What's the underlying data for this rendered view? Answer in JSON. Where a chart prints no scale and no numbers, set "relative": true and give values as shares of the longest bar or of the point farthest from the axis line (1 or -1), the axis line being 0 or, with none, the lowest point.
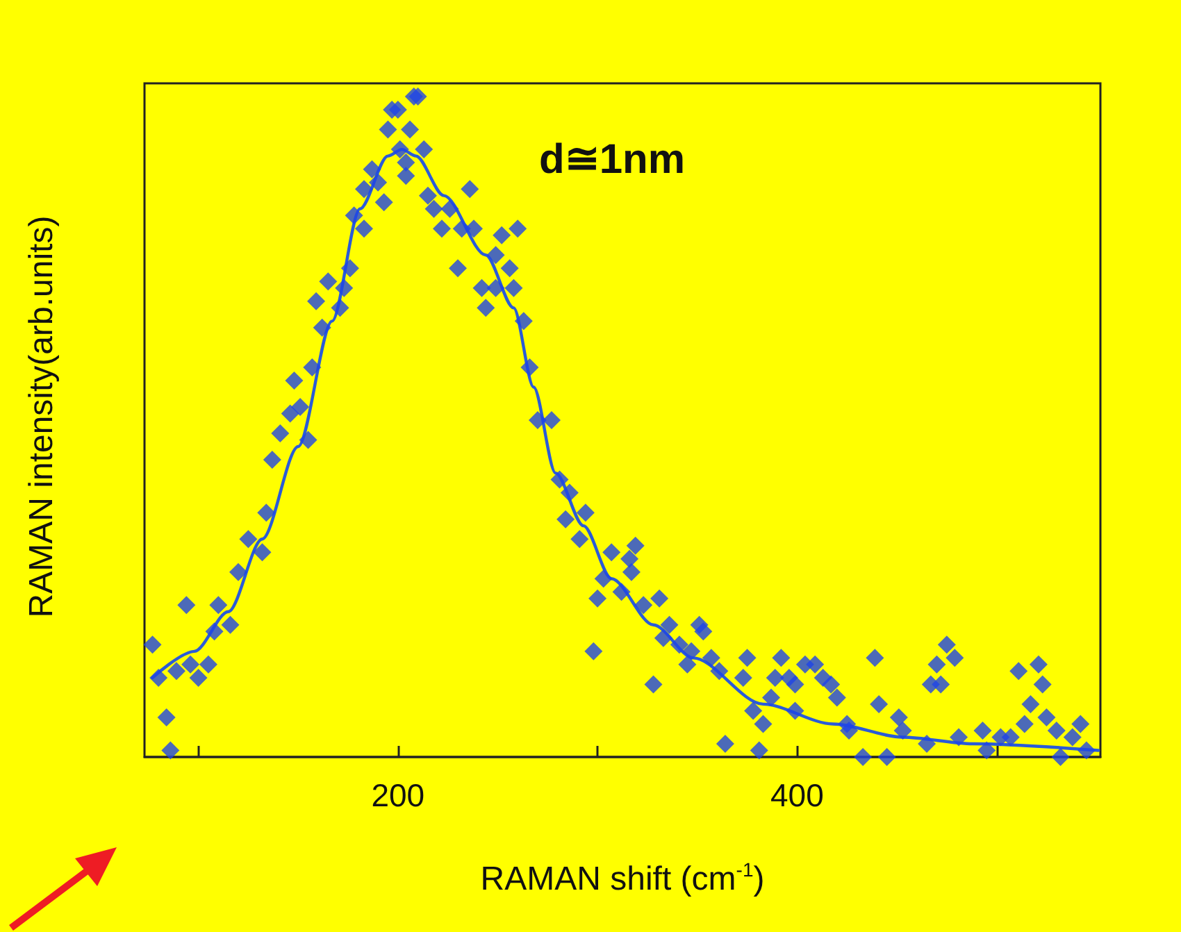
{
  "chart_data": {
    "type": "scatter",
    "xlabel": "RAMAN shift (cm$^{-1}$)",
    "ylabel": "RAMAN intensity(arb.units)",
    "annotations": [
      "d≅1nm"
    ],
    "relative": true,
    "xlim": [
      73,
      552
    ],
    "xticks": [
      {
        "value": 100,
        "label": null
      },
      200,
      {
        "value": 300,
        "label": null
      },
      400,
      {
        "value": 500,
        "label": null
      }
    ],
    "grid": false,
    "series": [
      {
        "marker": "diamond",
        "color": "#1f45e6",
        "x": [
          77,
          80,
          84,
          86,
          89,
          94,
          96,
          100,
          105,
          108,
          110,
          116,
          120,
          125,
          132,
          134,
          137,
          141,
          146,
          151,
          155,
          148,
          157,
          162,
          159,
          165,
          171,
          173,
          176,
          178,
          183,
          183,
          193,
          187,
          190,
          195,
          197,
          201,
          204,
          206,
          208,
          210,
          200,
          213,
          204,
          215,
          236,
          218,
          226,
          222,
          232,
          238,
          252,
          260,
          230,
          249,
          256,
          242,
          249,
          258,
          244,
          263,
          266,
          270,
          277,
          281,
          286,
          284,
          294,
          291,
          307,
          316,
          303,
          312,
          300,
          298,
          319,
          317,
          323,
          331,
          328,
          336,
          333,
          351,
          353,
          341,
          347,
          357,
          345,
          361,
          375,
          373,
          378,
          383,
          364,
          381,
          387,
          392,
          389,
          396,
          399,
          404,
          409,
          413,
          417,
          420,
          399,
          425,
          426,
          433,
          439,
          441,
          445,
          451,
          453,
          465,
          467,
          472,
          470,
          479,
          475,
          481,
          493,
          495,
          502,
          507,
          511,
          521,
          523,
          517,
          514,
          525,
          530,
          538,
          542,
          545,
          532
        ],
        "values": [
          0.17,
          0.12,
          0.06,
          0.01,
          0.13,
          0.23,
          0.14,
          0.12,
          0.14,
          0.19,
          0.23,
          0.2,
          0.28,
          0.33,
          0.31,
          0.37,
          0.45,
          0.49,
          0.52,
          0.53,
          0.48,
          0.57,
          0.59,
          0.65,
          0.69,
          0.72,
          0.68,
          0.71,
          0.74,
          0.82,
          0.8,
          0.86,
          0.84,
          0.89,
          0.87,
          0.95,
          0.98,
          0.92,
          0.9,
          0.95,
          1.0,
          1.0,
          0.98,
          0.92,
          0.88,
          0.85,
          0.86,
          0.83,
          0.83,
          0.8,
          0.8,
          0.8,
          0.79,
          0.8,
          0.74,
          0.76,
          0.74,
          0.71,
          0.71,
          0.71,
          0.68,
          0.66,
          0.59,
          0.51,
          0.51,
          0.42,
          0.4,
          0.36,
          0.37,
          0.33,
          0.31,
          0.3,
          0.27,
          0.25,
          0.24,
          0.16,
          0.32,
          0.28,
          0.23,
          0.24,
          0.11,
          0.2,
          0.18,
          0.2,
          0.19,
          0.17,
          0.16,
          0.15,
          0.14,
          0.13,
          0.15,
          0.12,
          0.07,
          0.05,
          0.02,
          0.01,
          0.09,
          0.15,
          0.12,
          0.12,
          0.11,
          0.14,
          0.14,
          0.12,
          0.11,
          0.09,
          0.07,
          0.05,
          0.04,
          0.0,
          0.15,
          0.08,
          0.0,
          0.06,
          0.04,
          0.02,
          0.11,
          0.11,
          0.14,
          0.15,
          0.17,
          0.03,
          0.04,
          0.01,
          0.03,
          0.03,
          0.13,
          0.14,
          0.11,
          0.08,
          0.05,
          0.06,
          0.04,
          0.03,
          0.05,
          0.01,
          0.0
        ]
      },
      {
        "type": "line",
        "marker": "none",
        "line_style": "solid",
        "color": "#2a5bd8",
        "x": [
          77,
          98,
          115,
          132,
          150,
          167,
          181,
          195,
          202,
          209,
          223,
          244,
          258,
          268,
          279,
          293,
          307,
          328,
          348,
          383,
          418,
          453,
          488,
          551
        ],
        "values": [
          0.12,
          0.16,
          0.22,
          0.33,
          0.47,
          0.66,
          0.83,
          0.91,
          0.92,
          0.91,
          0.85,
          0.76,
          0.68,
          0.56,
          0.43,
          0.35,
          0.27,
          0.2,
          0.15,
          0.08,
          0.05,
          0.03,
          0.02,
          0.01
        ]
      }
    ]
  }
}
